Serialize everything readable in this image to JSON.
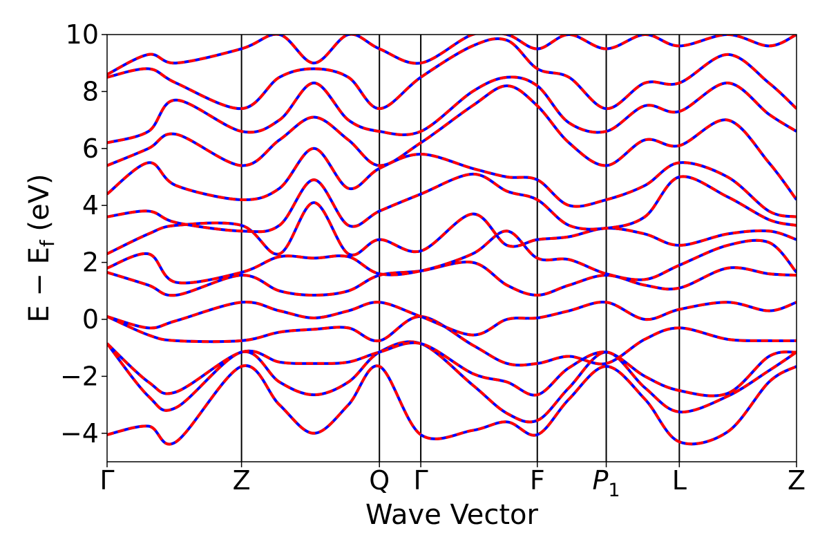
{
  "chart_data": {
    "type": "line",
    "xlabel": "Wave Vector",
    "ylabel": {
      "main": "E − E",
      "subscript": "f",
      "unit": " (eV)"
    },
    "ylim": [
      -5,
      10
    ],
    "yticks": [
      -4,
      -2,
      0,
      2,
      4,
      6,
      8,
      10
    ],
    "ytick_labels": [
      "−4",
      "−2",
      "0",
      "2",
      "4",
      "6",
      "8",
      "10"
    ],
    "grid": false,
    "legend": "none",
    "high_symmetry_points": [
      {
        "label": "Γ",
        "k": 0.0
      },
      {
        "label": "Z",
        "k": 0.195
      },
      {
        "label": "Q",
        "k": 0.395
      },
      {
        "label": "Γ",
        "k": 0.455
      },
      {
        "label": "F",
        "k": 0.624
      },
      {
        "label": "P",
        "subscript": "1",
        "italic": true,
        "k": 0.724
      },
      {
        "label": "L",
        "k": 0.83
      },
      {
        "label": "Z",
        "k": 1.0
      }
    ],
    "overlay_colors": {
      "bands_solid": "#ff0000",
      "bands_dashed": "#0000ff"
    },
    "bands": [
      {
        "k": [
          0,
          0.06,
          0.1,
          0.195,
          0.25,
          0.3,
          0.35,
          0.395,
          0.455,
          0.53,
          0.58,
          0.624,
          0.67,
          0.724,
          0.78,
          0.83,
          0.9,
          0.96,
          1.0
        ],
        "energy": [
          -4.05,
          -3.75,
          -4.3,
          -1.65,
          -3.0,
          -4.0,
          -3.0,
          -1.65,
          -4.05,
          -3.9,
          -3.6,
          -4.05,
          -2.8,
          -1.65,
          -2.8,
          -4.3,
          -3.95,
          -2.2,
          -1.65
        ]
      },
      {
        "k": [
          0,
          0.06,
          0.1,
          0.195,
          0.25,
          0.3,
          0.35,
          0.395,
          0.455,
          0.53,
          0.58,
          0.624,
          0.67,
          0.724,
          0.78,
          0.83,
          0.9,
          0.96,
          1.0
        ],
        "energy": [
          -0.85,
          -2.7,
          -3.1,
          -1.15,
          -2.2,
          -2.65,
          -2.2,
          -1.15,
          -0.85,
          -2.3,
          -3.3,
          -3.55,
          -2.4,
          -1.15,
          -2.4,
          -3.25,
          -2.7,
          -1.8,
          -1.15
        ]
      },
      {
        "k": [
          0,
          0.06,
          0.1,
          0.195,
          0.25,
          0.3,
          0.35,
          0.395,
          0.455,
          0.53,
          0.58,
          0.624,
          0.67,
          0.724,
          0.78,
          0.83,
          0.9,
          0.96,
          1.0
        ],
        "energy": [
          -0.85,
          -2.2,
          -2.55,
          -1.15,
          -1.5,
          -1.55,
          -1.5,
          -1.15,
          -0.85,
          -1.9,
          -2.2,
          -2.65,
          -1.7,
          -1.15,
          -2.0,
          -2.5,
          -2.6,
          -1.3,
          -1.15
        ]
      },
      {
        "k": [
          0,
          0.06,
          0.1,
          0.195,
          0.25,
          0.3,
          0.35,
          0.395,
          0.455,
          0.53,
          0.58,
          0.624,
          0.67,
          0.724,
          0.78,
          0.83,
          0.9,
          0.96,
          1.0
        ],
        "energy": [
          0.1,
          -0.55,
          -0.75,
          -0.75,
          -0.45,
          -0.35,
          -0.3,
          -0.75,
          0.1,
          -0.9,
          -1.55,
          -1.55,
          -1.3,
          -1.55,
          -0.7,
          -0.3,
          -0.7,
          -0.75,
          -0.75
        ]
      },
      {
        "k": [
          0,
          0.06,
          0.1,
          0.195,
          0.25,
          0.3,
          0.35,
          0.395,
          0.455,
          0.53,
          0.58,
          0.624,
          0.67,
          0.724,
          0.78,
          0.83,
          0.9,
          0.96,
          1.0
        ],
        "energy": [
          0.1,
          -0.3,
          -0.05,
          0.6,
          0.3,
          0.05,
          0.3,
          0.6,
          0.1,
          -0.55,
          0.0,
          0.05,
          0.3,
          0.6,
          0.0,
          0.35,
          0.6,
          0.3,
          0.6
        ]
      },
      {
        "k": [
          0,
          0.06,
          0.1,
          0.195,
          0.25,
          0.3,
          0.35,
          0.395,
          0.455,
          0.53,
          0.58,
          0.624,
          0.67,
          0.724,
          0.78,
          0.83,
          0.9,
          0.96,
          1.0
        ],
        "energy": [
          1.65,
          1.2,
          0.85,
          1.55,
          1.0,
          0.85,
          1.0,
          1.55,
          1.7,
          2.0,
          1.2,
          0.85,
          1.2,
          1.55,
          1.2,
          1.1,
          1.8,
          1.6,
          1.55
        ]
      },
      {
        "k": [
          0,
          0.06,
          0.1,
          0.195,
          0.25,
          0.3,
          0.35,
          0.395,
          0.455,
          0.53,
          0.58,
          0.624,
          0.67,
          0.724,
          0.78,
          0.83,
          0.9,
          0.96,
          1.0
        ],
        "energy": [
          1.8,
          2.3,
          1.3,
          1.65,
          2.2,
          2.15,
          2.2,
          1.6,
          1.7,
          2.3,
          3.1,
          2.15,
          2.1,
          1.6,
          1.4,
          1.9,
          2.6,
          2.7,
          1.65
        ]
      },
      {
        "k": [
          0,
          0.06,
          0.1,
          0.195,
          0.25,
          0.3,
          0.35,
          0.395,
          0.455,
          0.53,
          0.58,
          0.624,
          0.67,
          0.724,
          0.78,
          0.83,
          0.9,
          0.96,
          1.0
        ],
        "energy": [
          2.3,
          3.0,
          3.3,
          3.3,
          2.3,
          4.1,
          2.3,
          2.8,
          2.4,
          3.7,
          2.6,
          2.8,
          2.9,
          3.2,
          3.0,
          2.6,
          3.0,
          3.1,
          2.8
        ]
      },
      {
        "k": [
          0,
          0.06,
          0.1,
          0.195,
          0.25,
          0.3,
          0.35,
          0.395,
          0.455,
          0.53,
          0.58,
          0.624,
          0.67,
          0.724,
          0.78,
          0.83,
          0.9,
          0.96,
          1.0
        ],
        "energy": [
          3.6,
          3.8,
          3.4,
          3.1,
          3.3,
          4.9,
          3.3,
          3.8,
          4.4,
          5.1,
          4.5,
          4.2,
          3.3,
          3.2,
          3.6,
          5.0,
          4.3,
          3.5,
          3.3
        ]
      },
      {
        "k": [
          0,
          0.06,
          0.1,
          0.195,
          0.25,
          0.3,
          0.35,
          0.395,
          0.455,
          0.53,
          0.58,
          0.624,
          0.67,
          0.724,
          0.78,
          0.83,
          0.9,
          0.96,
          1.0
        ],
        "energy": [
          4.4,
          5.5,
          4.7,
          4.2,
          4.6,
          6.0,
          4.6,
          5.3,
          5.8,
          5.3,
          5.0,
          4.9,
          4.0,
          4.2,
          4.7,
          5.5,
          5.0,
          3.8,
          3.6
        ]
      },
      {
        "k": [
          0,
          0.06,
          0.1,
          0.195,
          0.25,
          0.3,
          0.35,
          0.395,
          0.455,
          0.53,
          0.58,
          0.624,
          0.67,
          0.724,
          0.78,
          0.83,
          0.9,
          0.96,
          1.0
        ],
        "energy": [
          5.4,
          6.0,
          6.5,
          5.4,
          6.3,
          7.1,
          6.3,
          5.4,
          6.2,
          7.5,
          8.2,
          7.5,
          6.2,
          5.4,
          6.3,
          6.1,
          7.0,
          5.5,
          4.2
        ]
      },
      {
        "k": [
          0,
          0.06,
          0.1,
          0.195,
          0.25,
          0.3,
          0.35,
          0.395,
          0.455,
          0.53,
          0.58,
          0.624,
          0.67,
          0.724,
          0.78,
          0.83,
          0.9,
          0.96,
          1.0
        ],
        "energy": [
          6.2,
          6.6,
          7.7,
          6.6,
          7.0,
          8.3,
          7.0,
          6.6,
          6.6,
          8.0,
          8.5,
          8.2,
          6.9,
          6.6,
          7.5,
          7.3,
          8.3,
          7.2,
          6.6
        ]
      },
      {
        "k": [
          0,
          0.06,
          0.1,
          0.195,
          0.25,
          0.3,
          0.35,
          0.395,
          0.455,
          0.53,
          0.58,
          0.624,
          0.67,
          0.724,
          0.78,
          0.83,
          0.9,
          0.96,
          1.0
        ],
        "energy": [
          8.5,
          8.8,
          8.3,
          7.4,
          8.5,
          8.8,
          8.5,
          7.4,
          8.5,
          9.6,
          9.8,
          8.8,
          8.5,
          7.4,
          8.3,
          8.3,
          9.3,
          8.3,
          7.4
        ]
      },
      {
        "k": [
          0,
          0.06,
          0.1,
          0.195,
          0.25,
          0.3,
          0.35,
          0.395,
          0.455,
          0.53,
          0.58,
          0.624,
          0.67,
          0.724,
          0.78,
          0.83,
          0.9,
          0.96,
          1.0
        ],
        "energy": [
          8.6,
          9.3,
          9.0,
          9.5,
          10.0,
          9.0,
          10.0,
          9.5,
          9.0,
          10.0,
          10.0,
          9.5,
          10.0,
          9.5,
          10.0,
          9.6,
          10.0,
          9.6,
          10.0
        ]
      }
    ]
  }
}
